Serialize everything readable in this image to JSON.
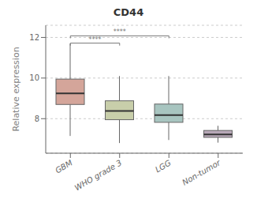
{
  "chart_data": {
    "type": "box",
    "title": "CD44",
    "ylabel": "Relative expression",
    "categories": [
      "GBM",
      "WHO grade 3",
      "LGG",
      "Non-tumor"
    ],
    "boxes": [
      {
        "q1": 8.7,
        "median": 9.25,
        "q3": 9.95,
        "whislo": 7.15,
        "whishi": 11.7
      },
      {
        "q1": 7.95,
        "median": 8.38,
        "q3": 8.88,
        "whislo": 6.8,
        "whishi": 10.1
      },
      {
        "q1": 7.82,
        "median": 8.18,
        "q3": 8.72,
        "whislo": 6.95,
        "whishi": 10.1
      },
      {
        "q1": 7.08,
        "median": 7.22,
        "q3": 7.42,
        "whislo": 6.82,
        "whishi": 7.65
      }
    ],
    "colors": [
      "#d4a59a",
      "#c8ceaa",
      "#a8c5c0",
      "#b8a8b8"
    ],
    "ylim": [
      6.3,
      12.6
    ],
    "yticks": [
      8,
      10,
      12
    ],
    "grid": true,
    "annotations": [
      {
        "text": "****",
        "x1": "GBM",
        "x2": "WHO grade 3",
        "y": 11.72
      },
      {
        "text": "****",
        "x1": "GBM",
        "x2": "LGG",
        "y": 12.08
      }
    ]
  }
}
